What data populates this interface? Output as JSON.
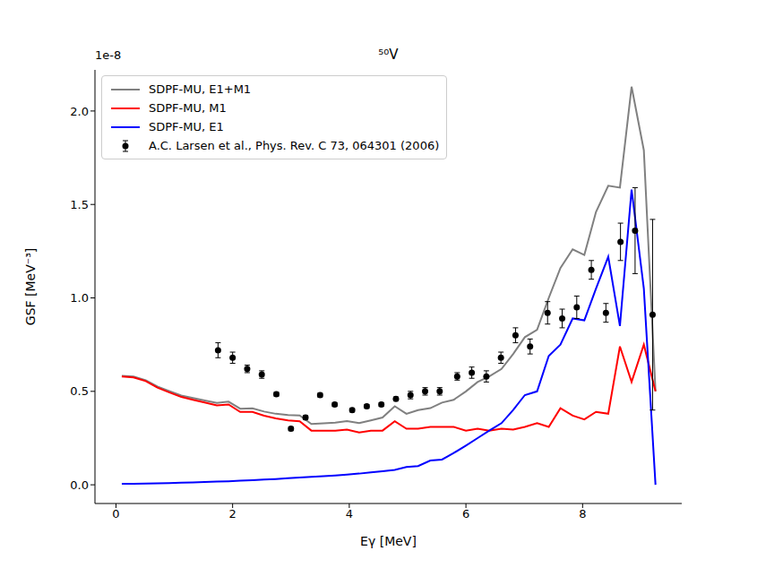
{
  "chart_data": {
    "type": "line",
    "title": "⁵⁰V",
    "x_label": "Eγ [MeV]",
    "y_label": "GSF [MeV⁻³]",
    "y_offset_text": "1e-8",
    "xlim": [
      -0.36,
      9.7
    ],
    "ylim": [
      -0.1,
      2.22
    ],
    "xticks": [
      0,
      2,
      4,
      6,
      8
    ],
    "yticks": [
      {
        "value": 0,
        "label": "0.0"
      },
      {
        "value": 0.5,
        "label": "0.5"
      },
      {
        "value": 1,
        "label": "1.0"
      },
      {
        "value": 1.5,
        "label": "1.5"
      },
      {
        "value": 2,
        "label": "2.0"
      }
    ],
    "legend": "upper left",
    "series": [
      {
        "name": "SDPF-MU, E1+M1",
        "type": "line",
        "color": "#808080",
        "x": [
          0.1,
          0.3,
          0.51,
          0.71,
          0.91,
          1.12,
          1.32,
          1.52,
          1.73,
          1.93,
          2.13,
          2.34,
          2.54,
          2.74,
          2.95,
          3.15,
          3.35,
          3.56,
          3.76,
          3.96,
          4.17,
          4.37,
          4.57,
          4.78,
          4.98,
          5.18,
          5.39,
          5.59,
          5.79,
          6.0,
          6.2,
          6.4,
          6.61,
          6.81,
          7.01,
          7.22,
          7.42,
          7.62,
          7.83,
          8.03,
          8.23,
          8.44,
          8.64,
          8.84,
          9.05,
          9.25
        ],
        "values": [
          0.583,
          0.579,
          0.56,
          0.526,
          0.502,
          0.478,
          0.464,
          0.451,
          0.438,
          0.445,
          0.407,
          0.409,
          0.392,
          0.38,
          0.373,
          0.371,
          0.325,
          0.329,
          0.333,
          0.341,
          0.33,
          0.345,
          0.36,
          0.42,
          0.38,
          0.4,
          0.41,
          0.44,
          0.455,
          0.5,
          0.55,
          0.58,
          0.62,
          0.7,
          0.79,
          0.83,
          1.0,
          1.16,
          1.26,
          1.23,
          1.46,
          1.6,
          1.59,
          2.13,
          1.79,
          0.5
        ]
      },
      {
        "name": "SDPF-MU, M1",
        "type": "line",
        "color": "#ff0000",
        "x": [
          0.1,
          0.3,
          0.51,
          0.71,
          0.91,
          1.12,
          1.32,
          1.52,
          1.73,
          1.93,
          2.13,
          2.34,
          2.54,
          2.74,
          2.95,
          3.15,
          3.35,
          3.56,
          3.76,
          3.96,
          4.17,
          4.37,
          4.57,
          4.78,
          4.98,
          5.18,
          5.39,
          5.59,
          5.79,
          6.0,
          6.2,
          6.4,
          6.61,
          6.81,
          7.01,
          7.22,
          7.42,
          7.62,
          7.83,
          8.03,
          8.23,
          8.44,
          8.64,
          8.84,
          9.05,
          9.25
        ],
        "values": [
          0.58,
          0.575,
          0.555,
          0.52,
          0.495,
          0.47,
          0.455,
          0.44,
          0.425,
          0.43,
          0.39,
          0.39,
          0.37,
          0.355,
          0.345,
          0.34,
          0.29,
          0.29,
          0.29,
          0.295,
          0.28,
          0.29,
          0.29,
          0.34,
          0.3,
          0.3,
          0.31,
          0.31,
          0.31,
          0.29,
          0.3,
          0.29,
          0.3,
          0.295,
          0.31,
          0.33,
          0.31,
          0.41,
          0.37,
          0.35,
          0.39,
          0.38,
          0.74,
          0.55,
          0.75,
          0.5
        ]
      },
      {
        "name": "SDPF-MU, E1",
        "type": "line",
        "color": "#0000ff",
        "x": [
          0.1,
          0.3,
          0.51,
          0.71,
          0.91,
          1.12,
          1.32,
          1.52,
          1.73,
          1.93,
          2.13,
          2.34,
          2.54,
          2.74,
          2.95,
          3.15,
          3.35,
          3.56,
          3.76,
          3.96,
          4.17,
          4.37,
          4.57,
          4.78,
          4.98,
          5.18,
          5.39,
          5.59,
          5.79,
          6.0,
          6.2,
          6.4,
          6.61,
          6.81,
          7.01,
          7.22,
          7.42,
          7.62,
          7.83,
          8.03,
          8.23,
          8.44,
          8.64,
          8.84,
          9.05,
          9.25
        ],
        "values": [
          0.005,
          0.006,
          0.007,
          0.008,
          0.009,
          0.011,
          0.013,
          0.015,
          0.017,
          0.019,
          0.022,
          0.025,
          0.028,
          0.031,
          0.035,
          0.039,
          0.043,
          0.046,
          0.05,
          0.055,
          0.06,
          0.067,
          0.073,
          0.08,
          0.095,
          0.1,
          0.13,
          0.135,
          0.17,
          0.21,
          0.25,
          0.29,
          0.33,
          0.4,
          0.48,
          0.5,
          0.69,
          0.75,
          0.89,
          0.88,
          1.05,
          1.22,
          0.85,
          1.58,
          1.05,
          0.0
        ]
      },
      {
        "name": "A.C. Larsen et al., Phys. Rev. C 73, 064301 (2006)",
        "type": "scatter",
        "color": "#000000",
        "marker": "o",
        "x": [
          1.75,
          2.0,
          2.25,
          2.5,
          2.75,
          3.0,
          3.25,
          3.5,
          3.75,
          4.05,
          4.3,
          4.55,
          4.8,
          5.05,
          5.3,
          5.55,
          5.85,
          6.1,
          6.35,
          6.6,
          6.85,
          7.1,
          7.4,
          7.65,
          7.9,
          8.15,
          8.4,
          8.65,
          8.9,
          9.2
        ],
        "values": [
          0.72,
          0.68,
          0.62,
          0.59,
          0.485,
          0.3,
          0.36,
          0.48,
          0.43,
          0.4,
          0.42,
          0.43,
          0.46,
          0.48,
          0.5,
          0.5,
          0.58,
          0.6,
          0.58,
          0.68,
          0.8,
          0.74,
          0.92,
          0.89,
          0.95,
          1.15,
          0.92,
          1.3,
          1.36,
          0.91
        ],
        "errors": [
          0.04,
          0.03,
          0.02,
          0.02,
          0.01,
          0.01,
          0.01,
          0.01,
          0.01,
          0.01,
          0.01,
          0.01,
          0.01,
          0.02,
          0.02,
          0.02,
          0.02,
          0.03,
          0.03,
          0.03,
          0.04,
          0.04,
          0.06,
          0.05,
          0.06,
          0.05,
          0.05,
          0.1,
          0.23,
          0.51
        ]
      }
    ]
  }
}
